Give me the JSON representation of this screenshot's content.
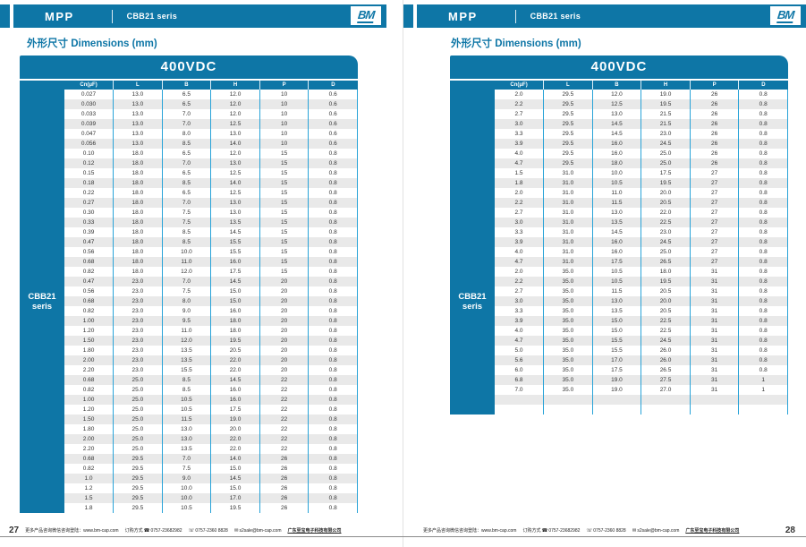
{
  "colors": {
    "accent": "#0e76a6",
    "grid_line": "#29a3d8",
    "row_alt": "#e9e9e9"
  },
  "icons": {
    "phone": "☎",
    "fax": "☏",
    "email": "✉"
  },
  "pages": [
    {
      "page_number": "27",
      "header": {
        "product": "MPP",
        "series": "CBB21 seris",
        "logo": "BM"
      },
      "section_title": "外形尺寸 Dimensions (mm)",
      "table": {
        "voltage": "400VDC",
        "side_label_line1": "CBB21",
        "side_label_line2": "seris",
        "columns": [
          "Cn(μF)",
          "L",
          "B",
          "H",
          "P",
          "D"
        ],
        "rows": [
          [
            "0.027",
            "13.0",
            "6.5",
            "12.0",
            "10",
            "0.6"
          ],
          [
            "0.030",
            "13.0",
            "6.5",
            "12.0",
            "10",
            "0.6"
          ],
          [
            "0.033",
            "13.0",
            "7.0",
            "12.0",
            "10",
            "0.6"
          ],
          [
            "0.039",
            "13.0",
            "7.0",
            "12.5",
            "10",
            "0.6"
          ],
          [
            "0.047",
            "13.0",
            "8.0",
            "13.0",
            "10",
            "0.6"
          ],
          [
            "0.056",
            "13.0",
            "8.5",
            "14.0",
            "10",
            "0.6"
          ],
          [
            "0.10",
            "18.0",
            "6.5",
            "12.0",
            "15",
            "0.8"
          ],
          [
            "0.12",
            "18.0",
            "7.0",
            "13.0",
            "15",
            "0.8"
          ],
          [
            "0.15",
            "18.0",
            "6.5",
            "12.5",
            "15",
            "0.8"
          ],
          [
            "0.18",
            "18.0",
            "8.5",
            "14.0",
            "15",
            "0.8"
          ],
          [
            "0.22",
            "18.0",
            "6.5",
            "12.5",
            "15",
            "0.8"
          ],
          [
            "0.27",
            "18.0",
            "7.0",
            "13.0",
            "15",
            "0.8"
          ],
          [
            "0.30",
            "18.0",
            "7.5",
            "13.0",
            "15",
            "0.8"
          ],
          [
            "0.33",
            "18.0",
            "7.5",
            "13.5",
            "15",
            "0.8"
          ],
          [
            "0.39",
            "18.0",
            "8.5",
            "14.5",
            "15",
            "0.8"
          ],
          [
            "0.47",
            "18.0",
            "8.5",
            "15.5",
            "15",
            "0.8"
          ],
          [
            "0.56",
            "18.0",
            "10.0",
            "15.5",
            "15",
            "0.8"
          ],
          [
            "0.68",
            "18.0",
            "11.0",
            "16.0",
            "15",
            "0.8"
          ],
          [
            "0.82",
            "18.0",
            "12.0",
            "17.5",
            "15",
            "0.8"
          ],
          [
            "0.47",
            "23.0",
            "7.0",
            "14.5",
            "20",
            "0.8"
          ],
          [
            "0.56",
            "23.0",
            "7.5",
            "15.0",
            "20",
            "0.8"
          ],
          [
            "0.68",
            "23.0",
            "8.0",
            "15.0",
            "20",
            "0.8"
          ],
          [
            "0.82",
            "23.0",
            "9.0",
            "16.0",
            "20",
            "0.8"
          ],
          [
            "1.00",
            "23.0",
            "9.5",
            "18.0",
            "20",
            "0.8"
          ],
          [
            "1.20",
            "23.0",
            "11.0",
            "18.0",
            "20",
            "0.8"
          ],
          [
            "1.50",
            "23.0",
            "12.0",
            "19.5",
            "20",
            "0.8"
          ],
          [
            "1.80",
            "23.0",
            "13.5",
            "20.5",
            "20",
            "0.8"
          ],
          [
            "2.00",
            "23.0",
            "13.5",
            "22.0",
            "20",
            "0.8"
          ],
          [
            "2.20",
            "23.0",
            "15.5",
            "22.0",
            "20",
            "0.8"
          ],
          [
            "0.68",
            "25.0",
            "8.5",
            "14.5",
            "22",
            "0.8"
          ],
          [
            "0.82",
            "25.0",
            "8.5",
            "16.0",
            "22",
            "0.8"
          ],
          [
            "1.00",
            "25.0",
            "10.5",
            "16.0",
            "22",
            "0.8"
          ],
          [
            "1.20",
            "25.0",
            "10.5",
            "17.5",
            "22",
            "0.8"
          ],
          [
            "1.50",
            "25.0",
            "11.5",
            "19.0",
            "22",
            "0.8"
          ],
          [
            "1.80",
            "25.0",
            "13.0",
            "20.0",
            "22",
            "0.8"
          ],
          [
            "2.00",
            "25.0",
            "13.0",
            "22.0",
            "22",
            "0.8"
          ],
          [
            "2.20",
            "25.0",
            "13.5",
            "22.0",
            "22",
            "0.8"
          ],
          [
            "0.68",
            "29.5",
            "7.0",
            "14.0",
            "26",
            "0.8"
          ],
          [
            "0.82",
            "29.5",
            "7.5",
            "15.0",
            "26",
            "0.8"
          ],
          [
            "1.0",
            "29.5",
            "9.0",
            "14.5",
            "26",
            "0.8"
          ],
          [
            "1.2",
            "29.5",
            "10.0",
            "15.0",
            "26",
            "0.8"
          ],
          [
            "1.5",
            "29.5",
            "10.0",
            "17.0",
            "26",
            "0.8"
          ],
          [
            "1.8",
            "29.5",
            "10.5",
            "19.5",
            "26",
            "0.8"
          ]
        ]
      },
      "footer": {
        "info": "更多产品咨询微信咨询登陆：www.bm-cap.com",
        "order_label": "订购方式",
        "phone": "0757-23682982",
        "fax": "0757-2360 8828",
        "email": "s2sale@bm-cap.com",
        "company": "广东至宝电子科技有限公司"
      }
    },
    {
      "page_number": "28",
      "header": {
        "product": "MPP",
        "series": "CBB21 seris",
        "logo": "BM"
      },
      "section_title": "外形尺寸 Dimensions (mm)",
      "table": {
        "voltage": "400VDC",
        "side_label_line1": "CBB21",
        "side_label_line2": "seris",
        "columns": [
          "Cn(μF)",
          "L",
          "B",
          "H",
          "P",
          "D"
        ],
        "rows": [
          [
            "2.0",
            "29.5",
            "12.0",
            "19.0",
            "26",
            "0.8"
          ],
          [
            "2.2",
            "29.5",
            "12.5",
            "19.5",
            "26",
            "0.8"
          ],
          [
            "2.7",
            "29.5",
            "13.0",
            "21.5",
            "26",
            "0.8"
          ],
          [
            "3.0",
            "29.5",
            "14.5",
            "21.5",
            "26",
            "0.8"
          ],
          [
            "3.3",
            "29.5",
            "14.5",
            "23.0",
            "26",
            "0.8"
          ],
          [
            "3.9",
            "29.5",
            "16.0",
            "24.5",
            "26",
            "0.8"
          ],
          [
            "4.0",
            "29.5",
            "16.0",
            "25.0",
            "26",
            "0.8"
          ],
          [
            "4.7",
            "29.5",
            "18.0",
            "25.0",
            "26",
            "0.8"
          ],
          [
            "1.5",
            "31.0",
            "10.0",
            "17.5",
            "27",
            "0.8"
          ],
          [
            "1.8",
            "31.0",
            "10.5",
            "19.5",
            "27",
            "0.8"
          ],
          [
            "2.0",
            "31.0",
            "11.0",
            "20.0",
            "27",
            "0.8"
          ],
          [
            "2.2",
            "31.0",
            "11.5",
            "20.5",
            "27",
            "0.8"
          ],
          [
            "2.7",
            "31.0",
            "13.0",
            "22.0",
            "27",
            "0.8"
          ],
          [
            "3.0",
            "31.0",
            "13.5",
            "22.5",
            "27",
            "0.8"
          ],
          [
            "3.3",
            "31.0",
            "14.5",
            "23.0",
            "27",
            "0.8"
          ],
          [
            "3.9",
            "31.0",
            "16.0",
            "24.5",
            "27",
            "0.8"
          ],
          [
            "4.0",
            "31.0",
            "16.0",
            "25.0",
            "27",
            "0.8"
          ],
          [
            "4.7",
            "31.0",
            "17.5",
            "26.5",
            "27",
            "0.8"
          ],
          [
            "2.0",
            "35.0",
            "10.5",
            "18.0",
            "31",
            "0.8"
          ],
          [
            "2.2",
            "35.0",
            "10.5",
            "19.5",
            "31",
            "0.8"
          ],
          [
            "2.7",
            "35.0",
            "11.5",
            "20.5",
            "31",
            "0.8"
          ],
          [
            "3.0",
            "35.0",
            "13.0",
            "20.0",
            "31",
            "0.8"
          ],
          [
            "3.3",
            "35.0",
            "13.5",
            "20.5",
            "31",
            "0.8"
          ],
          [
            "3.9",
            "35.0",
            "15.0",
            "22.5",
            "31",
            "0.8"
          ],
          [
            "4.0",
            "35.0",
            "15.0",
            "22.5",
            "31",
            "0.8"
          ],
          [
            "4.7",
            "35.0",
            "15.5",
            "24.5",
            "31",
            "0.8"
          ],
          [
            "5.0",
            "35.0",
            "15.5",
            "26.0",
            "31",
            "0.8"
          ],
          [
            "5.6",
            "35.0",
            "17.0",
            "26.0",
            "31",
            "0.8"
          ],
          [
            "6.0",
            "35.0",
            "17.5",
            "26.5",
            "31",
            "0.8"
          ],
          [
            "6.8",
            "35.0",
            "19.0",
            "27.5",
            "31",
            "1"
          ],
          [
            "7.0",
            "35.0",
            "19.0",
            "27.0",
            "31",
            "1"
          ],
          [
            "",
            "",
            "",
            "",
            "",
            ""
          ],
          [
            "",
            "",
            "",
            "",
            "",
            ""
          ]
        ]
      },
      "footer": {
        "info": "更多产品咨询微信咨询登陆：www.bm-cap.com",
        "order_label": "订购方式",
        "phone": "0757-23682982",
        "fax": "0757-2360 8828",
        "email": "s2sale@bm-cap.com",
        "company": "广东至宝电子科技有限公司"
      }
    }
  ]
}
